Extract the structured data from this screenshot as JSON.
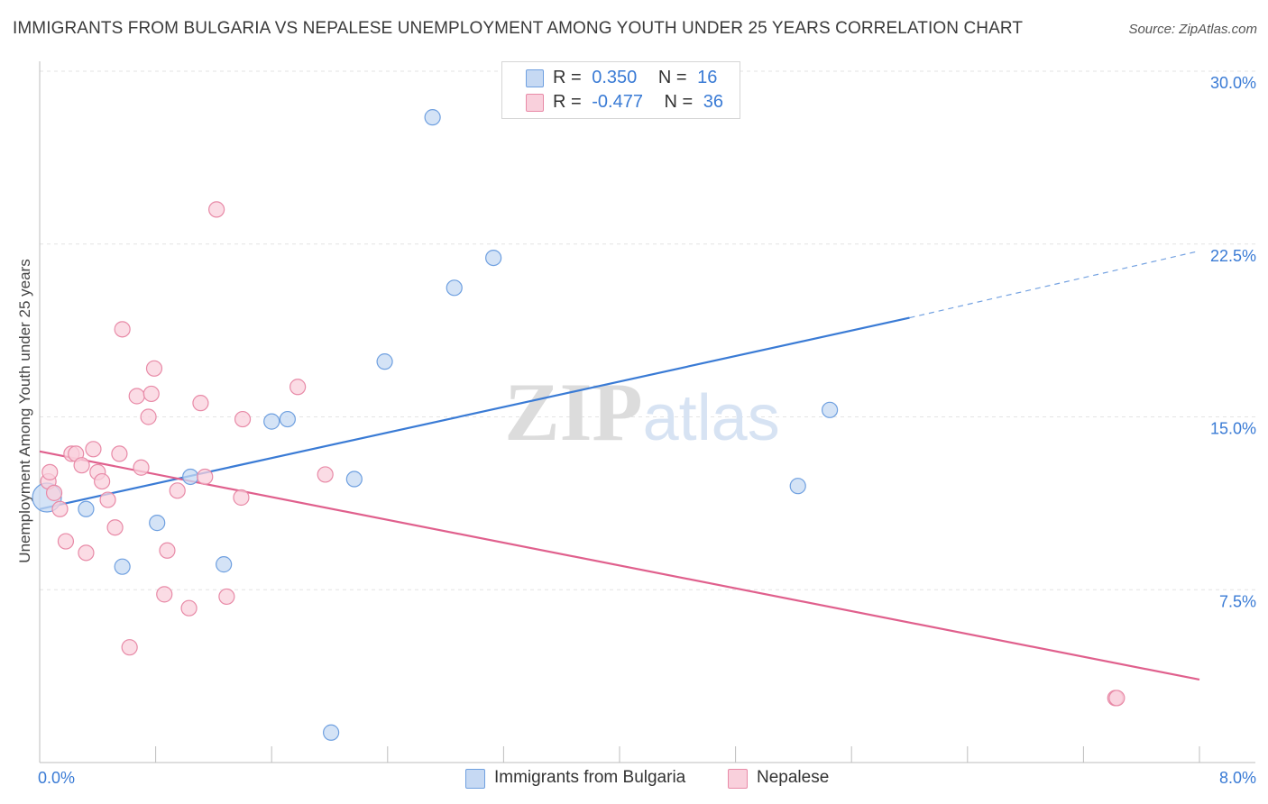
{
  "chart_data": {
    "type": "scatter",
    "title": "IMMIGRANTS FROM BULGARIA VS NEPALESE UNEMPLOYMENT AMONG YOUTH UNDER 25 YEARS CORRELATION CHART",
    "source": "Source: ZipAtlas.com",
    "xlabel": "",
    "ylabel": "Unemployment Among Youth under 25 years",
    "xlim": [
      0,
      8.0
    ],
    "ylim": [
      0,
      30.0
    ],
    "x_tick_labels": [
      "0.0%",
      "8.0%"
    ],
    "y_ticks": [
      7.5,
      15.0,
      22.5,
      30.0
    ],
    "y_tick_labels": [
      "7.5%",
      "15.0%",
      "22.5%",
      "30.0%"
    ],
    "grid": true,
    "watermark": "ZIPatlas",
    "legend": {
      "placement": "top-center",
      "rows": [
        {
          "r_label": "R =",
          "r_value": "0.350",
          "n_label": "N =",
          "n_value": "16"
        },
        {
          "r_label": "R =",
          "r_value": "-0.477",
          "n_label": "N =",
          "n_value": "36"
        }
      ]
    },
    "series": [
      {
        "name": "Immigrants from Bulgaria",
        "color": "#6fa0e0",
        "fill": "#c6d9f3",
        "line_color": "#3a7bd5",
        "trend": {
          "x0": 0.0,
          "y0": 11.0,
          "x1": 6.0,
          "y1": 19.3,
          "x_dash_end": 8.0,
          "y_dash_end": 22.2
        },
        "points": [
          {
            "x": 0.05,
            "y": 11.5,
            "big": true
          },
          {
            "x": 0.32,
            "y": 11.0
          },
          {
            "x": 0.57,
            "y": 8.5
          },
          {
            "x": 0.81,
            "y": 10.4
          },
          {
            "x": 1.04,
            "y": 12.4
          },
          {
            "x": 1.27,
            "y": 8.6
          },
          {
            "x": 1.6,
            "y": 14.8
          },
          {
            "x": 1.71,
            "y": 14.9
          },
          {
            "x": 2.01,
            "y": 1.3
          },
          {
            "x": 2.17,
            "y": 12.3
          },
          {
            "x": 2.38,
            "y": 17.4
          },
          {
            "x": 2.71,
            "y": 28.0
          },
          {
            "x": 2.86,
            "y": 20.6
          },
          {
            "x": 3.13,
            "y": 21.9
          },
          {
            "x": 5.23,
            "y": 12.0
          },
          {
            "x": 5.45,
            "y": 15.3
          }
        ]
      },
      {
        "name": "Nepalese",
        "color": "#e88aa7",
        "fill": "#f9d0dc",
        "line_color": "#e0608d",
        "trend": {
          "x0": 0.0,
          "y0": 13.5,
          "x1": 8.0,
          "y1": 3.6
        },
        "points": [
          {
            "x": 0.06,
            "y": 12.2
          },
          {
            "x": 0.07,
            "y": 12.6
          },
          {
            "x": 0.1,
            "y": 11.7
          },
          {
            "x": 0.14,
            "y": 11.0
          },
          {
            "x": 0.18,
            "y": 9.6
          },
          {
            "x": 0.22,
            "y": 13.4
          },
          {
            "x": 0.25,
            "y": 13.4
          },
          {
            "x": 0.29,
            "y": 12.9
          },
          {
            "x": 0.32,
            "y": 9.1
          },
          {
            "x": 0.37,
            "y": 13.6
          },
          {
            "x": 0.4,
            "y": 12.6
          },
          {
            "x": 0.43,
            "y": 12.2
          },
          {
            "x": 0.47,
            "y": 11.4
          },
          {
            "x": 0.52,
            "y": 10.2
          },
          {
            "x": 0.55,
            "y": 13.4
          },
          {
            "x": 0.57,
            "y": 18.8
          },
          {
            "x": 0.62,
            "y": 5.0
          },
          {
            "x": 0.67,
            "y": 15.9
          },
          {
            "x": 0.7,
            "y": 12.8
          },
          {
            "x": 0.75,
            "y": 15.0
          },
          {
            "x": 0.77,
            "y": 16.0
          },
          {
            "x": 0.79,
            "y": 17.1
          },
          {
            "x": 0.86,
            "y": 7.3
          },
          {
            "x": 0.88,
            "y": 9.2
          },
          {
            "x": 0.95,
            "y": 11.8
          },
          {
            "x": 1.03,
            "y": 6.7
          },
          {
            "x": 1.11,
            "y": 15.6
          },
          {
            "x": 1.14,
            "y": 12.4
          },
          {
            "x": 1.22,
            "y": 24.0
          },
          {
            "x": 1.29,
            "y": 7.2
          },
          {
            "x": 1.39,
            "y": 11.5
          },
          {
            "x": 1.4,
            "y": 14.9
          },
          {
            "x": 1.78,
            "y": 16.3
          },
          {
            "x": 1.97,
            "y": 12.5
          },
          {
            "x": 7.42,
            "y": 2.8
          },
          {
            "x": 7.43,
            "y": 2.8
          }
        ]
      }
    ]
  }
}
